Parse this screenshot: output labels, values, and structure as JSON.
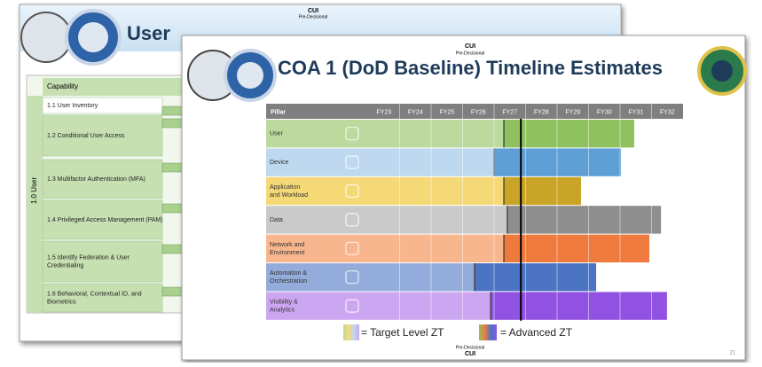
{
  "back_slide": {
    "title": "User",
    "marking": "CUI",
    "marking_sub": "Pre-Decisional",
    "side_label": "1.0 User",
    "header": "Capability",
    "rows": [
      "1.1 User Inventory",
      "1.2 Conditional User Access",
      "1.3 Multifactor Authentication (MFA)",
      "1.4 Privileged Access Management (PAM)",
      "1.5 Identify Federation & User Credentialing",
      "1.6 Behavioral, Contextual ID, and Biometrics"
    ]
  },
  "front_slide": {
    "marking": "CUI",
    "marking_sub": "Pre-Decisional",
    "title": "COA 1 (DoD Baseline) Timeline Estimates",
    "footer_sub": "Pre-Decisional",
    "footer": "CUI",
    "page": "21",
    "chart_data": {
      "type": "timeline",
      "header": "Pillar",
      "categories": [
        "FY23",
        "FY24",
        "FY25",
        "FY26",
        "FY27",
        "FY28",
        "FY29",
        "FY30",
        "FY31",
        "FY32"
      ],
      "xlim": [
        23,
        33
      ],
      "current_marker": 27.85,
      "pillars": [
        {
          "name": "User",
          "light": "#bcd99e",
          "dark": "#8fc25f",
          "target_end": 27.31,
          "advanced_end": 31.45
        },
        {
          "name": "Device",
          "light": "#bed8ef",
          "dark": "#5e9fd6",
          "target_end": 27.0,
          "advanced_end": 31.03
        },
        {
          "name": "Application and Workload",
          "light": "#f5d977",
          "dark": "#c9a427",
          "target_end": 27.31,
          "advanced_end": 29.76
        },
        {
          "name": "Data",
          "light": "#cacaca",
          "dark": "#8e8e8e",
          "target_end": 27.42,
          "advanced_end": 32.3
        },
        {
          "name": "Network and Environment",
          "light": "#f8b68e",
          "dark": "#ee7b3d",
          "target_end": 27.31,
          "advanced_end": 31.93
        },
        {
          "name": "Automation & Orchestration",
          "light": "#93acdc",
          "dark": "#4b74c3",
          "target_end": 26.38,
          "advanced_end": 30.24
        },
        {
          "name": "Visibility & Analytics",
          "light": "#cda6f2",
          "dark": "#9152e2",
          "target_end": 26.89,
          "advanced_end": 32.49
        }
      ],
      "legend": [
        "= Target Level ZT",
        "= Advanced ZT"
      ]
    }
  }
}
